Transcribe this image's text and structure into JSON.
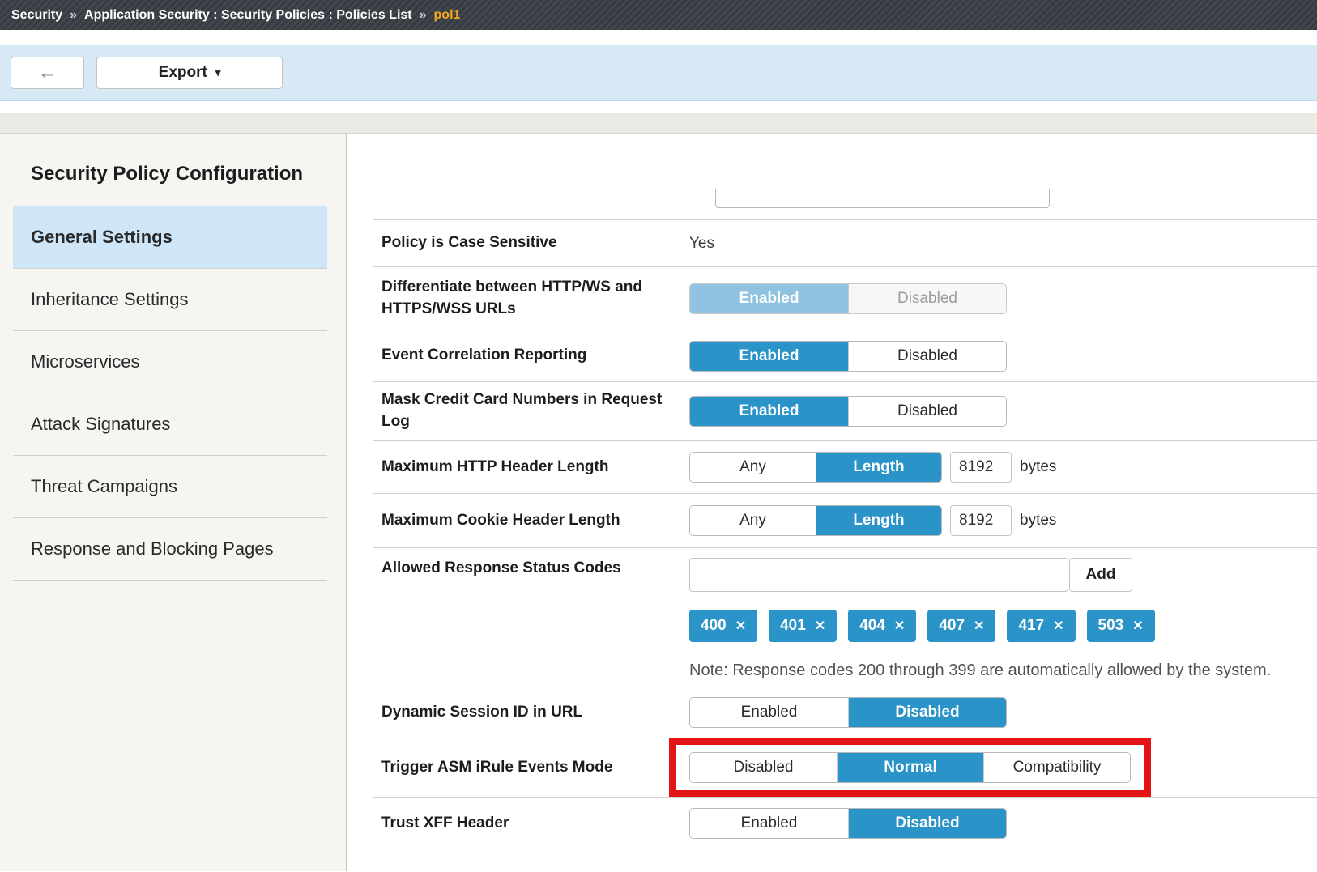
{
  "breadcrumb": {
    "root": "Security",
    "separator": "»",
    "path": "Application Security : Security Policies : Policies List",
    "current": "pol1"
  },
  "toolbar": {
    "export_label": "Export"
  },
  "icons": {
    "back_arrow": "←",
    "caret_down": "▾",
    "remove": "✕"
  },
  "colors": {
    "accent_blue": "#2a93c8",
    "highlight_red": "#e51414",
    "breadcrumb_gold": "#f3a71c",
    "toolbar_blue": "#d7e9f5"
  },
  "sidebar": {
    "title": "Security Policy Configuration",
    "items": [
      {
        "label": "General Settings",
        "active": true
      },
      {
        "label": "Inheritance Settings",
        "active": false
      },
      {
        "label": "Microservices",
        "active": false
      },
      {
        "label": "Attack Signatures",
        "active": false
      },
      {
        "label": "Threat Campaigns",
        "active": false
      },
      {
        "label": "Response and Blocking Pages",
        "active": false
      }
    ]
  },
  "settings": {
    "policy_case_sensitive": {
      "label": "Policy is Case Sensitive",
      "value": "Yes"
    },
    "differentiate_urls": {
      "label": "Differentiate between HTTP/WS and HTTPS/WSS URLs",
      "options": [
        "Enabled",
        "Disabled"
      ],
      "selected": "Enabled",
      "read_only": true
    },
    "event_correlation": {
      "label": "Event Correlation Reporting",
      "options": [
        "Enabled",
        "Disabled"
      ],
      "selected": "Enabled"
    },
    "mask_credit_card": {
      "label": "Mask Credit Card Numbers in Request Log",
      "options": [
        "Enabled",
        "Disabled"
      ],
      "selected": "Enabled"
    },
    "max_http_header": {
      "label": "Maximum HTTP Header Length",
      "options": [
        "Any",
        "Length"
      ],
      "selected": "Length",
      "value": "8192",
      "unit": "bytes"
    },
    "max_cookie_header": {
      "label": "Maximum Cookie Header Length",
      "options": [
        "Any",
        "Length"
      ],
      "selected": "Length",
      "value": "8192",
      "unit": "bytes"
    },
    "allowed_status_codes": {
      "label": "Allowed Response Status Codes",
      "input_value": "",
      "add_label": "Add",
      "codes": [
        "400",
        "401",
        "404",
        "407",
        "417",
        "503"
      ],
      "note": "Note: Response codes 200 through 399 are automatically allowed by the system."
    },
    "dynamic_session_id": {
      "label": "Dynamic Session ID in URL",
      "options": [
        "Enabled",
        "Disabled"
      ],
      "selected": "Disabled"
    },
    "trigger_asm_irule": {
      "label": "Trigger ASM iRule Events Mode",
      "options": [
        "Disabled",
        "Normal",
        "Compatibility"
      ],
      "selected": "Normal",
      "highlighted": true
    },
    "trust_xff": {
      "label": "Trust XFF Header",
      "options": [
        "Enabled",
        "Disabled"
      ],
      "selected": "Disabled"
    }
  }
}
